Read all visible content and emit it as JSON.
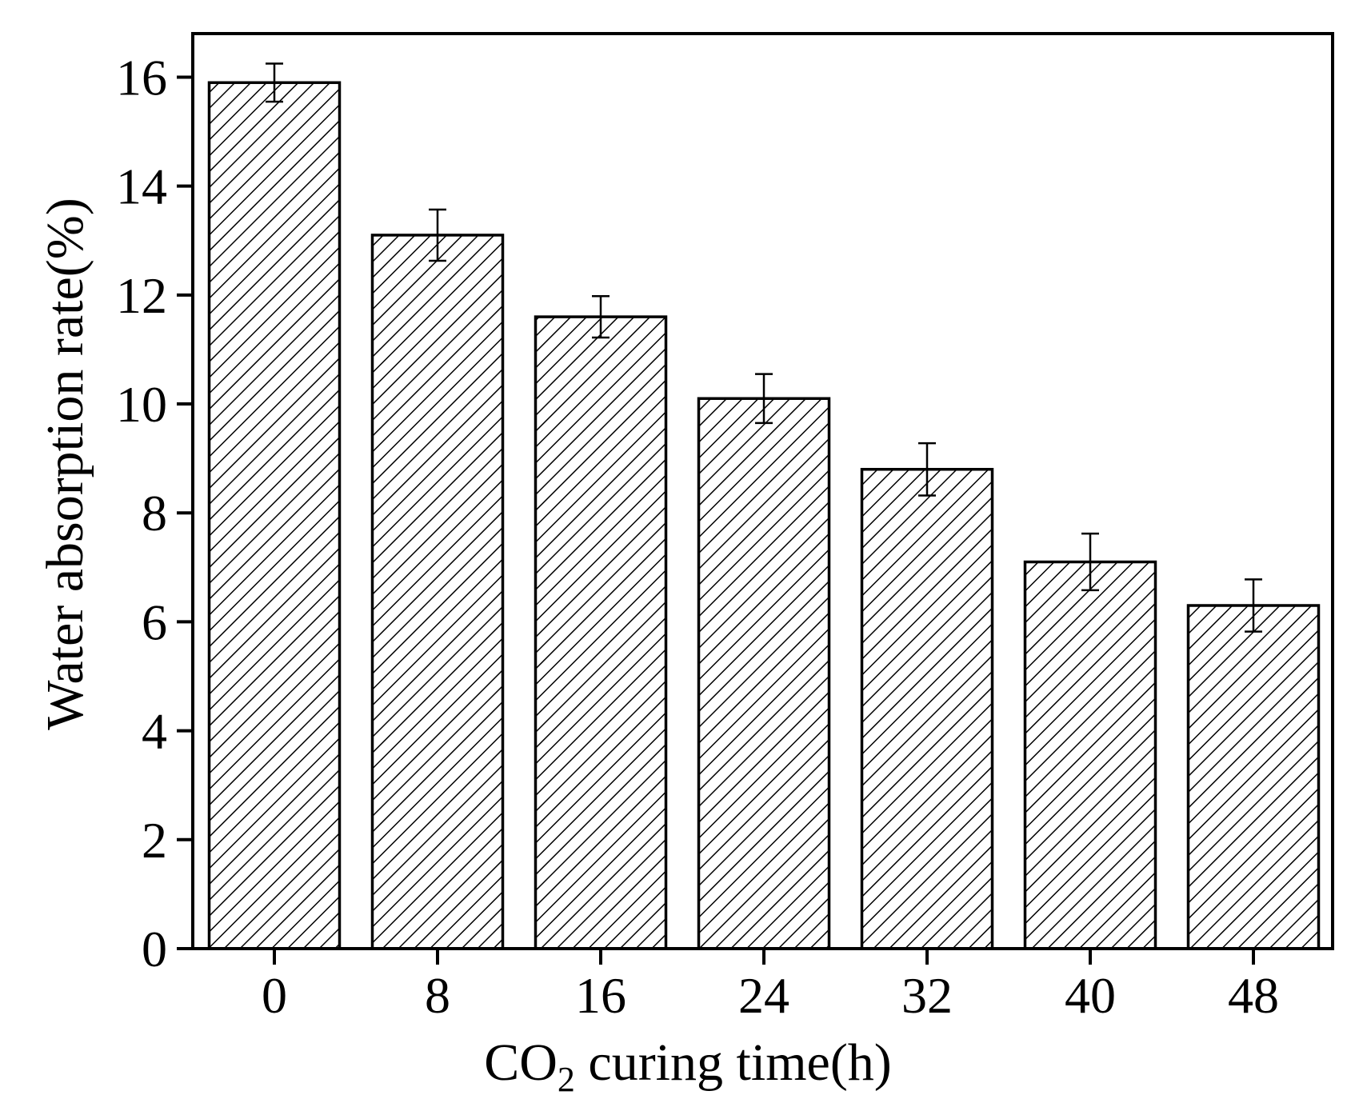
{
  "chart_data": {
    "type": "bar",
    "title": "",
    "categories": [
      "0",
      "8",
      "16",
      "24",
      "32",
      "40",
      "48"
    ],
    "values": [
      15.9,
      13.1,
      11.6,
      10.1,
      8.8,
      7.1,
      6.3
    ],
    "error_bars": [
      0.35,
      0.47,
      0.38,
      0.45,
      0.48,
      0.52,
      0.48
    ],
    "xlabel": {
      "prefix": "CO",
      "subscript": "2",
      "suffix": " curing time(h)"
    },
    "ylabel": "Water absorption rate(%)",
    "ylim": [
      0,
      16.8
    ],
    "yticks": [
      0,
      2,
      4,
      6,
      8,
      10,
      12,
      14,
      16
    ],
    "ytick_labels": [
      "0",
      "2",
      "4",
      "6",
      "8",
      "10",
      "12",
      "14",
      "16"
    ],
    "grid": false,
    "legend": "none",
    "bar_fill": "diagonal-hatch",
    "colors": {
      "stroke": "#000000",
      "background": "#ffffff"
    }
  }
}
